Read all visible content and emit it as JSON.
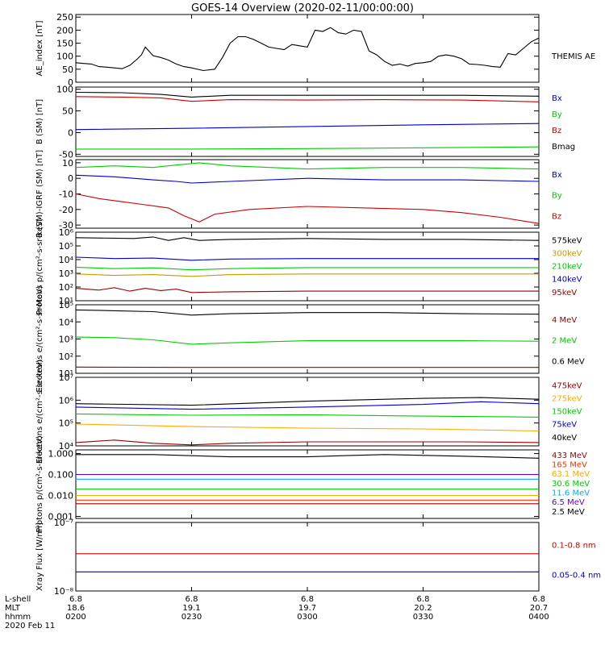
{
  "title": "GOES-14 Overview (2020-02-11/00:00:00)",
  "chart_data": [
    {
      "type": "line",
      "ylabel": "AE_index [nT]",
      "yscale": "linear",
      "ylim": [
        0,
        260
      ],
      "yticks": [
        0,
        50,
        100,
        150,
        200,
        250
      ],
      "ytick_labels": [
        "0",
        "50",
        "100",
        "150",
        "200",
        "250"
      ],
      "series": [
        {
          "name": "THEMIS AE",
          "color": "#000000",
          "x": [
            0,
            2,
            4,
            6,
            8,
            10,
            12,
            14,
            16,
            17,
            18,
            20,
            22,
            24,
            26,
            28,
            30,
            33,
            36,
            38,
            40,
            42,
            44,
            46,
            48,
            50,
            52,
            54,
            56,
            58,
            60,
            62,
            64,
            66,
            68,
            70,
            72,
            74,
            76,
            78,
            80,
            82,
            84,
            86,
            88,
            90,
            92,
            94,
            96,
            98,
            100,
            102,
            104,
            106,
            108,
            110,
            112,
            114,
            116,
            118,
            120
          ],
          "y": [
            75,
            72,
            70,
            60,
            58,
            55,
            52,
            65,
            90,
            105,
            135,
            102,
            95,
            85,
            70,
            60,
            55,
            45,
            50,
            95,
            150,
            175,
            175,
            165,
            150,
            135,
            130,
            125,
            145,
            140,
            135,
            200,
            195,
            210,
            190,
            185,
            200,
            195,
            120,
            105,
            80,
            65,
            70,
            62,
            72,
            75,
            80,
            100,
            105,
            100,
            90,
            70,
            68,
            65,
            60,
            58,
            110,
            105,
            130,
            155,
            170
          ],
          "label": "THEMIS AE"
        }
      ]
    },
    {
      "type": "line",
      "ylabel": "B (SM) [nT]",
      "yscale": "linear",
      "ylim": [
        -55,
        105
      ],
      "yticks": [
        -50,
        0,
        50,
        100
      ],
      "ytick_labels": [
        "-50",
        "0",
        "50",
        "100"
      ],
      "series": [
        {
          "name": "Bx",
          "color": "#0000cc",
          "x": [
            0,
            30,
            60,
            90,
            120
          ],
          "y": [
            7,
            10,
            14,
            18,
            21
          ]
        },
        {
          "name": "By",
          "color": "#00cc00",
          "x": [
            0,
            30,
            60,
            90,
            120
          ],
          "y": [
            -38,
            -38,
            -37,
            -35,
            -33
          ]
        },
        {
          "name": "Bz",
          "color": "#cc0000",
          "x": [
            0,
            12,
            22,
            30,
            40,
            60,
            80,
            100,
            120
          ],
          "y": [
            83,
            82,
            80,
            72,
            76,
            75,
            76,
            75,
            71
          ]
        },
        {
          "name": "Bmag",
          "color": "#000000",
          "x": [
            0,
            12,
            22,
            30,
            40,
            60,
            80,
            100,
            120
          ],
          "y": [
            93,
            92,
            88,
            82,
            86,
            86,
            86,
            86,
            84
          ]
        }
      ]
    },
    {
      "type": "line",
      "ylabel": "B (SM)-IGRF (SM) [nT]",
      "yscale": "linear",
      "ylim": [
        -32,
        12
      ],
      "yticks": [
        -30,
        -20,
        -10,
        0,
        10
      ],
      "ytick_labels": [
        "-30",
        "-20",
        "-10",
        "0",
        "10"
      ],
      "series": [
        {
          "name": "Bx",
          "color": "#0000cc",
          "x": [
            0,
            10,
            20,
            26,
            30,
            40,
            60,
            80,
            100,
            120
          ],
          "y": [
            2,
            1,
            -1,
            -2,
            -3,
            -2,
            0,
            -1,
            -1,
            -2
          ]
        },
        {
          "name": "By",
          "color": "#00cc00",
          "x": [
            0,
            10,
            20,
            24,
            28,
            32,
            40,
            60,
            80,
            100,
            120
          ],
          "y": [
            7,
            8,
            7,
            8,
            9,
            10,
            8,
            6,
            7,
            7,
            6
          ]
        },
        {
          "name": "Bz",
          "color": "#cc0000",
          "x": [
            0,
            6,
            12,
            18,
            24,
            28,
            32,
            36,
            45,
            60,
            75,
            90,
            100,
            110,
            120
          ],
          "y": [
            -10,
            -13,
            -15,
            -17,
            -19,
            -24,
            -28,
            -23,
            -20,
            -18,
            -19,
            -20,
            -22,
            -25,
            -29
          ]
        }
      ]
    },
    {
      "type": "line",
      "ylabel": "Protons p/(cm²-s-sr-keV)",
      "yscale": "log",
      "ylim": [
        10,
        1000000
      ],
      "yticks": [
        10,
        100,
        1000,
        10000,
        100000,
        1000000
      ],
      "ytick_labels": [
        "10¹",
        "10²",
        "10³",
        "10⁴",
        "10⁵",
        "10⁶"
      ],
      "series": [
        {
          "name": "575keV",
          "color": "#000000",
          "x": [
            0,
            15,
            20,
            24,
            28,
            32,
            40,
            60,
            80,
            100,
            120
          ],
          "y": [
            400000,
            350000,
            450000,
            250000,
            400000,
            250000,
            300000,
            350000,
            300000,
            300000,
            250000
          ]
        },
        {
          "name": "300keV",
          "color": "#cc9900",
          "x": [
            0,
            10,
            20,
            30,
            40,
            60,
            80,
            100,
            120
          ],
          "y": [
            900,
            700,
            800,
            600,
            800,
            900,
            900,
            900,
            900
          ]
        },
        {
          "name": "210keV",
          "color": "#00cc00",
          "x": [
            0,
            10,
            20,
            30,
            40,
            60,
            80,
            100,
            120
          ],
          "y": [
            2800,
            2200,
            2500,
            1800,
            2200,
            2600,
            2600,
            2600,
            2600
          ]
        },
        {
          "name": "140keV",
          "color": "#0000cc",
          "x": [
            0,
            10,
            20,
            30,
            40,
            60,
            80,
            100,
            120
          ],
          "y": [
            15000,
            12000,
            13000,
            9000,
            11000,
            12000,
            12000,
            12000,
            12000
          ]
        },
        {
          "name": "95keV",
          "color": "#990000",
          "x": [
            0,
            6,
            10,
            14,
            18,
            22,
            26,
            30,
            40,
            60,
            80,
            100,
            120
          ],
          "y": [
            80,
            60,
            90,
            50,
            80,
            55,
            70,
            40,
            45,
            50,
            50,
            50,
            50
          ]
        }
      ]
    },
    {
      "type": "line",
      "ylabel": "Electrons e/(cm²-s-sr-MeV)",
      "yscale": "log",
      "ylim": [
        10,
        100000
      ],
      "yticks": [
        10,
        100,
        1000,
        10000,
        100000
      ],
      "ytick_labels": [
        "10¹",
        "10²",
        "10³",
        "10⁴",
        "10⁵"
      ],
      "series": [
        {
          "name": "4 MeV",
          "color": "#990000",
          "x": [
            0,
            30,
            60,
            90,
            120
          ],
          "y": [
            23,
            22,
            22,
            22,
            22
          ]
        },
        {
          "name": "2 MeV",
          "color": "#00cc00",
          "x": [
            0,
            10,
            20,
            30,
            40,
            60,
            80,
            100,
            120
          ],
          "y": [
            1300,
            1200,
            900,
            500,
            600,
            800,
            800,
            800,
            750
          ]
        },
        {
          "name": "0.6 MeV",
          "color": "#000000",
          "x": [
            0,
            10,
            20,
            30,
            40,
            60,
            80,
            100,
            120
          ],
          "y": [
            50000,
            45000,
            40000,
            25000,
            30000,
            35000,
            35000,
            30000,
            28000
          ]
        }
      ]
    },
    {
      "type": "line",
      "ylabel": "Electrons e/(cm²-s-sr-keV)",
      "yscale": "log",
      "ylim": [
        10000,
        10000000
      ],
      "yticks": [
        10000,
        100000,
        1000000,
        10000000
      ],
      "ytick_labels": [
        "10⁴",
        "10⁵",
        "10⁶",
        "10⁷"
      ],
      "series": [
        {
          "name": "475keV",
          "color": "#990000",
          "x": [
            0,
            10,
            20,
            30,
            40,
            60,
            80,
            100,
            120
          ],
          "y": [
            14000,
            18000,
            13000,
            11000,
            13000,
            15000,
            15000,
            15000,
            14000
          ]
        },
        {
          "name": "275keV",
          "color": "#ffaa00",
          "x": [
            0,
            30,
            60,
            90,
            120
          ],
          "y": [
            90000,
            70000,
            60000,
            55000,
            45000
          ]
        },
        {
          "name": "150keV",
          "color": "#00cc00",
          "x": [
            0,
            30,
            60,
            90,
            120
          ],
          "y": [
            250000,
            220000,
            230000,
            200000,
            180000
          ]
        },
        {
          "name": "75keV",
          "color": "#0000cc",
          "x": [
            0,
            30,
            60,
            90,
            105,
            120
          ],
          "y": [
            500000,
            400000,
            500000,
            650000,
            850000,
            700000
          ]
        },
        {
          "name": "40keV",
          "color": "#000000",
          "x": [
            0,
            30,
            60,
            90,
            105,
            120
          ],
          "y": [
            700000,
            600000,
            900000,
            1200000,
            1300000,
            1100000
          ]
        }
      ]
    },
    {
      "type": "line",
      "ylabel": "Protons p/(cm²-s-sr-keV)",
      "yscale": "log",
      "ylim": [
        0.0008,
        1.5
      ],
      "yticks": [
        0.001,
        0.01,
        0.1,
        1
      ],
      "ytick_labels": [
        "0.001",
        "0.010",
        "0.100",
        "1.000"
      ],
      "series": [
        {
          "name": "433 MeV",
          "color": "#990000",
          "x": [
            0,
            30,
            60,
            90,
            120
          ],
          "y": [
            0.004,
            0.004,
            0.004,
            0.004,
            0.004
          ]
        },
        {
          "name": "165 MeV",
          "color": "#ff3300",
          "x": [
            0,
            30,
            60,
            90,
            120
          ],
          "y": [
            0.006,
            0.006,
            0.006,
            0.006,
            0.006
          ]
        },
        {
          "name": "63.1 MeV",
          "color": "#ffaa00",
          "x": [
            0,
            30,
            60,
            90,
            120
          ],
          "y": [
            0.01,
            0.01,
            0.01,
            0.01,
            0.01
          ]
        },
        {
          "name": "30.6 MeV",
          "color": "#00cc00",
          "x": [
            0,
            30,
            60,
            90,
            120
          ],
          "y": [
            0.02,
            0.02,
            0.02,
            0.02,
            0.02
          ]
        },
        {
          "name": "11.6 MeV",
          "color": "#00aaff",
          "x": [
            0,
            30,
            60,
            90,
            120
          ],
          "y": [
            0.06,
            0.06,
            0.06,
            0.06,
            0.06
          ]
        },
        {
          "name": "6.5 MeV",
          "color": "#6600cc",
          "x": [
            0,
            30,
            60,
            90,
            120
          ],
          "y": [
            0.1,
            0.1,
            0.1,
            0.1,
            0.1
          ]
        },
        {
          "name": "2.5 MeV",
          "color": "#000000",
          "x": [
            0,
            20,
            40,
            60,
            70,
            80,
            100,
            120
          ],
          "y": [
            0.9,
            0.9,
            0.7,
            0.7,
            0.8,
            0.9,
            0.75,
            0.6
          ]
        }
      ]
    },
    {
      "type": "line",
      "ylabel": "Xray Flux [W/m²]",
      "yscale": "log",
      "ylim": [
        1e-08,
        1e-07
      ],
      "yticks": [
        1e-08,
        1e-07
      ],
      "ytick_labels": [
        "10⁻⁸",
        "10⁻⁷"
      ],
      "series": [
        {
          "name": "0.1-0.8 nm",
          "color": "#cc0000",
          "x": [
            0,
            30,
            60,
            90,
            120
          ],
          "y": [
            3.5e-08,
            3.5e-08,
            3.5e-08,
            3.5e-08,
            3.5e-08
          ]
        },
        {
          "name": "0.05-0.4 nm",
          "color": "#0000cc",
          "x": [
            0,
            30,
            60,
            90,
            120
          ],
          "y": [
            1.9e-08,
            1.9e-08,
            1.9e-08,
            1.9e-08,
            1.9e-08
          ]
        }
      ]
    }
  ],
  "time_axis": {
    "row_labels": [
      "L-shell",
      "MLT",
      "hhmm",
      "2020 Feb 11"
    ],
    "ticks": [
      {
        "lshell": "6.8",
        "mlt": "18.6",
        "hhmm": "0200"
      },
      {
        "lshell": "6.8",
        "mlt": "19.1",
        "hhmm": "0230"
      },
      {
        "lshell": "6.8",
        "mlt": "19.7",
        "hhmm": "0300"
      },
      {
        "lshell": "6.8",
        "mlt": "20.2",
        "hhmm": "0330"
      },
      {
        "lshell": "6.8",
        "mlt": "20.7",
        "hhmm": "0400"
      }
    ],
    "xlim": [
      0,
      120
    ]
  }
}
